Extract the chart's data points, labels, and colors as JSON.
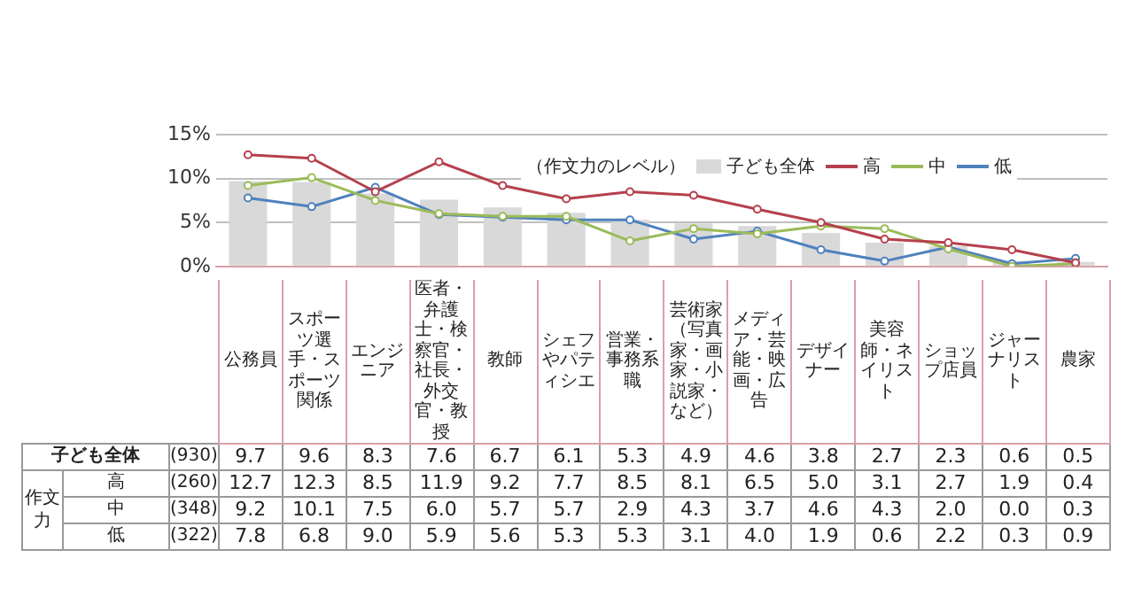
{
  "chart_data": {
    "type": "bar",
    "legend_title": "（作文力のレベル）",
    "categories": [
      "公務員",
      "スポーツ選手・スポーツ関係",
      "エンジニア",
      "医者・弁護士・検察官・社長・外交官・教授",
      "教師",
      "シェフやパティシエ",
      "営業・事務系職",
      "芸術家（写真家・画家・小説家・など）",
      "メディア・芸能・映画・広告",
      "デザイナー",
      "美容師・ネイリスト",
      "ショップ店員",
      "ジャーナリスト",
      "農家"
    ],
    "series": [
      {
        "name": "子ども全体",
        "color": "#d9d9d9",
        "values": [
          9.7,
          9.6,
          8.3,
          7.6,
          6.7,
          6.1,
          5.3,
          4.9,
          4.6,
          3.8,
          2.7,
          2.3,
          0.6,
          0.5
        ],
        "value_labels": [
          "9.7",
          "9.6",
          "8.3",
          "7.6",
          "6.7",
          "6.1",
          "5.3",
          "4.9",
          "4.6",
          "3.8",
          "2.7",
          "2.3",
          "0.6",
          "0.5"
        ]
      },
      {
        "name": "高",
        "type": "line",
        "color": "#b5404d",
        "values": [
          12.7,
          12.3,
          8.5,
          11.9,
          9.2,
          7.7,
          8.5,
          8.1,
          6.5,
          5.0,
          3.1,
          2.7,
          1.9,
          0.4
        ],
        "value_labels": [
          "12.7",
          "12.3",
          "8.5",
          "11.9",
          "9.2",
          "7.7",
          "8.5",
          "8.1",
          "6.5",
          "5.0",
          "3.1",
          "2.7",
          "1.9",
          "0.4"
        ]
      },
      {
        "name": "中",
        "type": "line",
        "color": "#9bbb59",
        "values": [
          9.2,
          10.1,
          7.5,
          6.0,
          5.7,
          5.7,
          2.9,
          4.3,
          3.7,
          4.6,
          4.3,
          2.0,
          0.0,
          0.3
        ],
        "value_labels": [
          "9.2",
          "10.1",
          "7.5",
          "6.0",
          "5.7",
          "5.7",
          "2.9",
          "4.3",
          "3.7",
          "4.6",
          "4.3",
          "2.0",
          "0.0",
          "0.3"
        ]
      },
      {
        "name": "低",
        "type": "line",
        "color": "#4f81bd",
        "values": [
          7.8,
          6.8,
          9.0,
          5.9,
          5.6,
          5.3,
          5.3,
          3.1,
          4.0,
          1.9,
          0.6,
          2.2,
          0.3,
          0.9
        ],
        "value_labels": [
          "7.8",
          "6.8",
          "9.0",
          "5.9",
          "5.6",
          "5.3",
          "5.3",
          "3.1",
          "4.0",
          "1.9",
          "0.6",
          "2.2",
          "0.3",
          "0.9"
        ]
      }
    ],
    "ylim": [
      0,
      15
    ],
    "yticks": [
      {
        "value": 0,
        "label": "0%"
      },
      {
        "value": 5,
        "label": "5%"
      },
      {
        "value": 10,
        "label": "10%"
      },
      {
        "value": 15,
        "label": "15%"
      }
    ],
    "grid": "y",
    "legend": "top right",
    "marker": "circle",
    "line_style": "solid",
    "annotations": [
      "(930)",
      "(260)",
      "(348)",
      "(322)",
      "作文力"
    ]
  }
}
